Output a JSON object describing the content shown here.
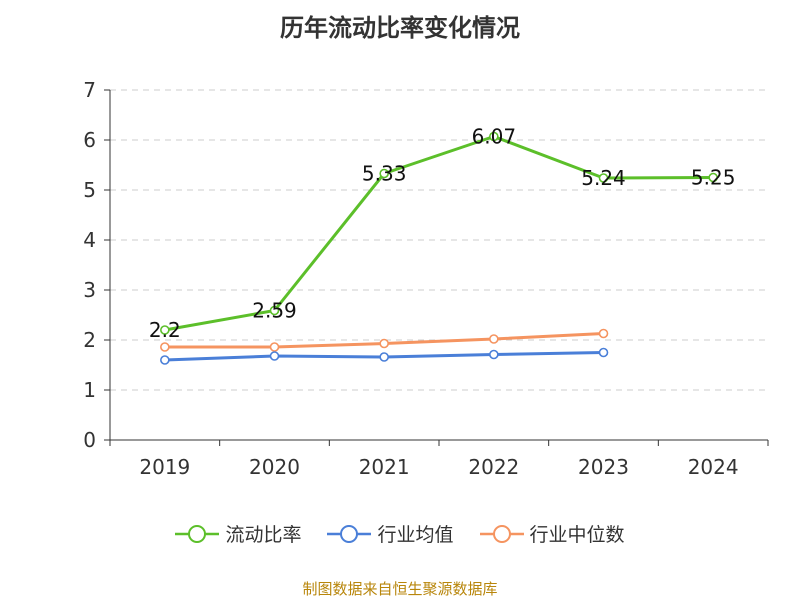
{
  "chart_data": {
    "type": "line",
    "title": "历年流动比率变化情况",
    "categories": [
      "2019",
      "2020",
      "2021",
      "2022",
      "2023",
      "2024"
    ],
    "ylim": [
      0,
      7
    ],
    "yticks": [
      "0",
      "1",
      "2",
      "3",
      "4",
      "5",
      "6",
      "7"
    ],
    "grid": true,
    "legend_position": "bottom",
    "series": [
      {
        "name": "流动比率",
        "color": "#5cbf2a",
        "values": [
          2.2,
          2.59,
          5.33,
          6.07,
          5.24,
          5.25
        ],
        "labels": [
          "2.2",
          "2.59",
          "5.33",
          "6.07",
          "5.24",
          "5.25"
        ]
      },
      {
        "name": "行业均值",
        "color": "#4a7fd8",
        "values": [
          1.6,
          1.68,
          1.66,
          1.71,
          1.75,
          null
        ],
        "labels": []
      },
      {
        "name": "行业中位数",
        "color": "#f59460",
        "values": [
          1.86,
          1.86,
          1.93,
          2.02,
          2.13,
          null
        ],
        "labels": []
      }
    ]
  },
  "source": "制图数据来自恒生聚源数据库"
}
